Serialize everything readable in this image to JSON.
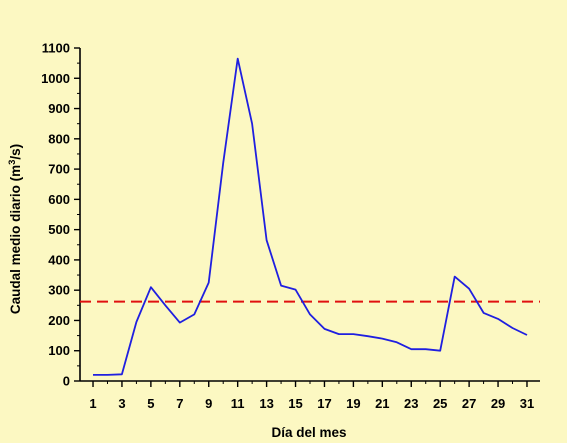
{
  "chart_data": {
    "type": "line",
    "xlabel": "Día del mes",
    "ylabel_main": "Caudal medio diario (m",
    "ylabel_sup": "3",
    "ylabel_tail": "/s)",
    "xlim": [
      1,
      31
    ],
    "ylim": [
      0,
      1100
    ],
    "x_tick_labels": [
      1,
      3,
      5,
      7,
      9,
      11,
      13,
      15,
      17,
      19,
      21,
      23,
      25,
      27,
      29,
      31
    ],
    "y_tick_labels": [
      0,
      100,
      200,
      300,
      400,
      500,
      600,
      700,
      800,
      900,
      1000,
      1100
    ],
    "grid": false,
    "legend": "none",
    "background_color": "#fcf8c2",
    "series": [
      {
        "color": "#1f1fe0",
        "style": "solid",
        "x": [
          1,
          2,
          3,
          4,
          5,
          6,
          7,
          8,
          9,
          10,
          11,
          12,
          13,
          14,
          15,
          16,
          17,
          18,
          19,
          20,
          21,
          22,
          23,
          24,
          25,
          26,
          27,
          28,
          29,
          30,
          31
        ],
        "y": [
          20,
          20,
          22,
          195,
          310,
          250,
          193,
          220,
          325,
          720,
          1065,
          850,
          465,
          315,
          302,
          220,
          172,
          155,
          155,
          148,
          140,
          128,
          105,
          105,
          100,
          345,
          305,
          225,
          205,
          175,
          152
        ]
      }
    ],
    "reference_lines": [
      {
        "y": 262,
        "color": "#e01010",
        "style": "dashed"
      }
    ]
  }
}
